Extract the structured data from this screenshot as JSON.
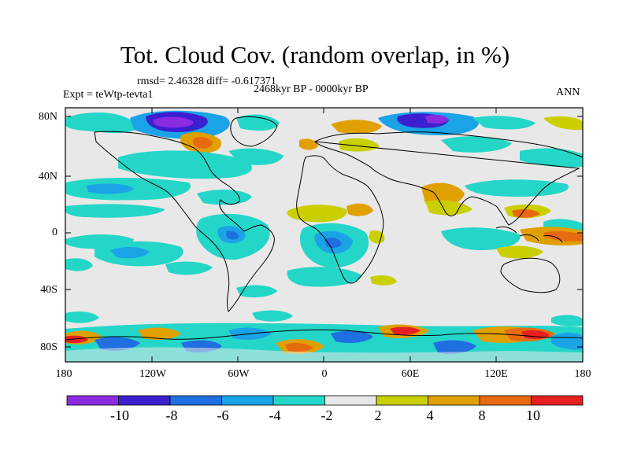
{
  "title": "Tot. Cloud Cov. (random overlap, in %)",
  "stats": "rmsd= 2.46328 diff= -0.617371",
  "period": "2468kyr BP - 0000kyr BP",
  "experiment": "Expt = teWtp-tevta1",
  "season": "ANN",
  "lat_ticks": [
    "80N",
    "40N",
    "0",
    "40S",
    "80S"
  ],
  "lon_ticks": [
    "180",
    "120W",
    "60W",
    "0",
    "60E",
    "120E",
    "180"
  ],
  "colorbar": {
    "labels": [
      "-10",
      "-8",
      "-6",
      "-4",
      "-2",
      "2",
      "4",
      "8",
      "10"
    ],
    "colors": [
      "#8a2be2",
      "#3c1fcf",
      "#1f6fe0",
      "#1aa3e6",
      "#24d6c8",
      "#e8e8e8",
      "#c9cf00",
      "#e0a000",
      "#e86a10",
      "#e62020"
    ]
  },
  "map_colors": {
    "neutral": "#e8e8e8",
    "cyan": "#24d6c8",
    "lightblue": "#1aa3e6",
    "blue": "#1f6fe0",
    "darkblue": "#3c1fcf",
    "purple": "#8a2be2",
    "yellow": "#c9cf00",
    "orange": "#e0a000",
    "darkorange": "#e86a10",
    "red": "#e62020"
  }
}
